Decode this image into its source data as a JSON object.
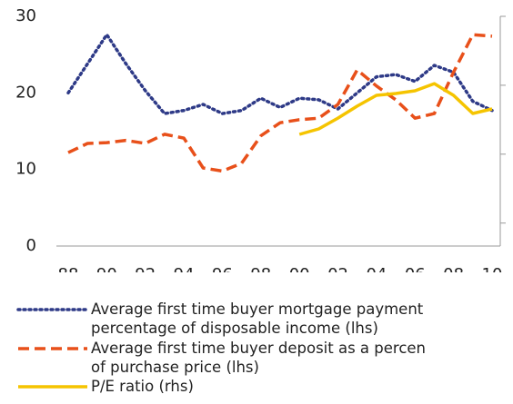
{
  "chart_data": {
    "type": "line",
    "categories": [
      "88",
      null,
      "90",
      null,
      "92",
      null,
      "94",
      null,
      "96",
      null,
      "98",
      null,
      "00",
      null,
      "02",
      null,
      "04",
      null,
      "06",
      null,
      "08",
      null,
      "10"
    ],
    "ylim": [
      0,
      30
    ],
    "yticks": [
      0,
      10,
      20,
      30
    ],
    "y2lim": [
      0,
      10
    ],
    "y2ticks": [
      1,
      4,
      7,
      10
    ],
    "series": [
      {
        "name": "Average first time buyer mortgage payment\npercentage of disposable income (lhs)",
        "color": "#2e3a87",
        "style": "dotted",
        "values": [
          20,
          23.8,
          27.6,
          23.8,
          20.3,
          17.3,
          17.7,
          18.5,
          17.3,
          17.7,
          19.3,
          18.1,
          19.3,
          19.1,
          17.9,
          20,
          22.1,
          22.4,
          21.5,
          23.6,
          22.7,
          18.9,
          17.7
        ]
      },
      {
        "name": "Average first time buyer deposit as a percen\nof purchase price (lhs)",
        "color": "#e8501a",
        "style": "dashed",
        "values": [
          12.2,
          13.4,
          13.5,
          13.8,
          13.4,
          14.6,
          14.1,
          10.2,
          9.8,
          10.8,
          14.4,
          16.1,
          16.5,
          16.7,
          18.5,
          23,
          20.9,
          19.1,
          16.7,
          17.3,
          22.7,
          27.6,
          27.4
        ]
      },
      {
        "name": "P/E ratio (rhs)",
        "color": "#f5c400",
        "style": "solid",
        "axis": "y2",
        "values": [
          null,
          null,
          null,
          null,
          null,
          null,
          null,
          null,
          null,
          null,
          null,
          null,
          4.86,
          5.1,
          5.57,
          6.09,
          6.56,
          6.64,
          6.76,
          7.07,
          6.56,
          5.77,
          5.97
        ]
      }
    ]
  }
}
